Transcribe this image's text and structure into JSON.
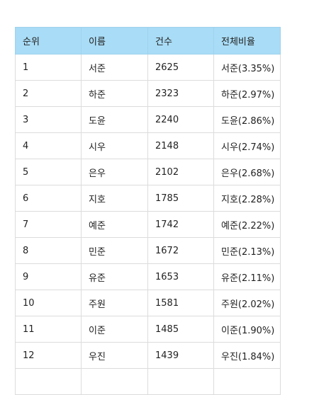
{
  "table": {
    "headers": [
      "순위",
      "이름",
      "건수",
      "전체비율"
    ],
    "rows": [
      [
        "1",
        "서준",
        "2625",
        "서준(3.35%)"
      ],
      [
        "2",
        "하준",
        "2323",
        "하준(2.97%)"
      ],
      [
        "3",
        "도윤",
        "2240",
        "도윤(2.86%)"
      ],
      [
        "4",
        "시우",
        "2148",
        "시우(2.74%)"
      ],
      [
        "5",
        "은우",
        "2102",
        "은우(2.68%)"
      ],
      [
        "6",
        "지호",
        "1785",
        "지호(2.28%)"
      ],
      [
        "7",
        "예준",
        "1742",
        "예준(2.22%)"
      ],
      [
        "8",
        "민준",
        "1672",
        "민준(2.13%)"
      ],
      [
        "9",
        "유준",
        "1653",
        "유준(2.11%)"
      ],
      [
        "10",
        "주원",
        "1581",
        "주원(2.02%)"
      ],
      [
        "11",
        "이준",
        "1485",
        "이준(1.90%)"
      ],
      [
        "12",
        "우진",
        "1439",
        "우진(1.84%)"
      ],
      [
        "",
        "",
        "",
        ""
      ]
    ]
  }
}
